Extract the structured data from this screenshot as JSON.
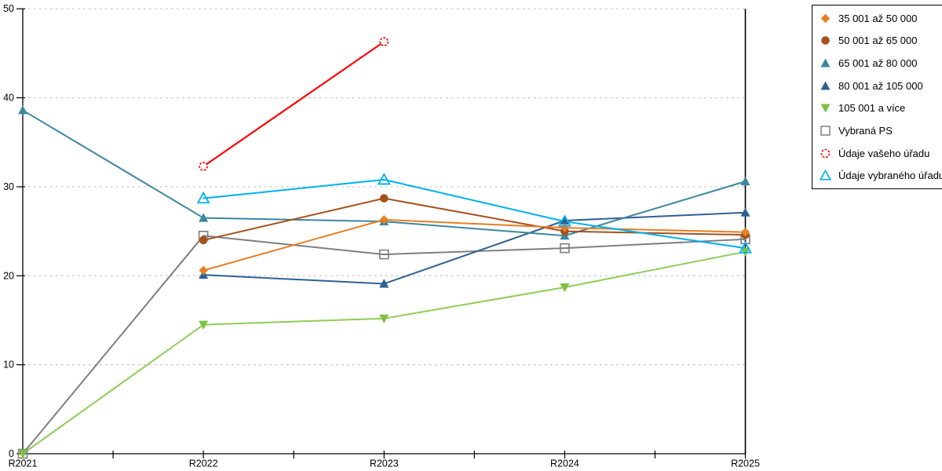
{
  "chart_data": {
    "type": "line",
    "title": "",
    "xlabel": "",
    "ylabel": "",
    "categories": [
      "R2021",
      "R2022",
      "R2023",
      "R2024",
      "R2025"
    ],
    "ylim": [
      0,
      50
    ],
    "yticks": [
      0,
      10,
      20,
      30,
      40,
      50
    ],
    "grid": "horizontal-dotted",
    "gridline_color": "#c0c0c0",
    "axis_color": "#000000",
    "legend_position": "top-right",
    "series": [
      {
        "name": "35 001 až 50 000",
        "marker": "diamond",
        "color": "#e87d23",
        "values": [
          null,
          20.6,
          26.3,
          25.4,
          24.9
        ]
      },
      {
        "name": "50 001 až 65 000",
        "marker": "circle",
        "color": "#a4511c",
        "values": [
          null,
          24.0,
          28.7,
          25.0,
          24.6
        ]
      },
      {
        "name": "65 001 až 80 000",
        "marker": "triangle-up",
        "color": "#3c87a0",
        "values": [
          38.6,
          26.5,
          26.1,
          24.5,
          30.6
        ]
      },
      {
        "name": "80 001 až 105 000",
        "marker": "triangle-up",
        "color": "#2f6093",
        "values": [
          null,
          20.1,
          19.1,
          26.2,
          27.1
        ]
      },
      {
        "name": "105 001 a více",
        "marker": "triangle-down",
        "color": "#7dc143",
        "line_color": "#8ecd56",
        "values": [
          0,
          14.5,
          15.2,
          18.7,
          22.7
        ]
      },
      {
        "name": "Vybraná PS",
        "marker": "square-open",
        "color": "#7f7f7f",
        "values": [
          0,
          24.5,
          22.4,
          23.1,
          24.1
        ]
      },
      {
        "name": "Údaje vašeho úřadu",
        "marker": "circle-open-dashed",
        "color": "#fe0000",
        "values": [
          null,
          32.3,
          46.3,
          null,
          null
        ]
      },
      {
        "name": "Údaje vybraného úřadu",
        "marker": "triangle-open",
        "color": "#00b0f0",
        "values": [
          null,
          28.7,
          30.8,
          26.1,
          23.1
        ]
      }
    ]
  }
}
